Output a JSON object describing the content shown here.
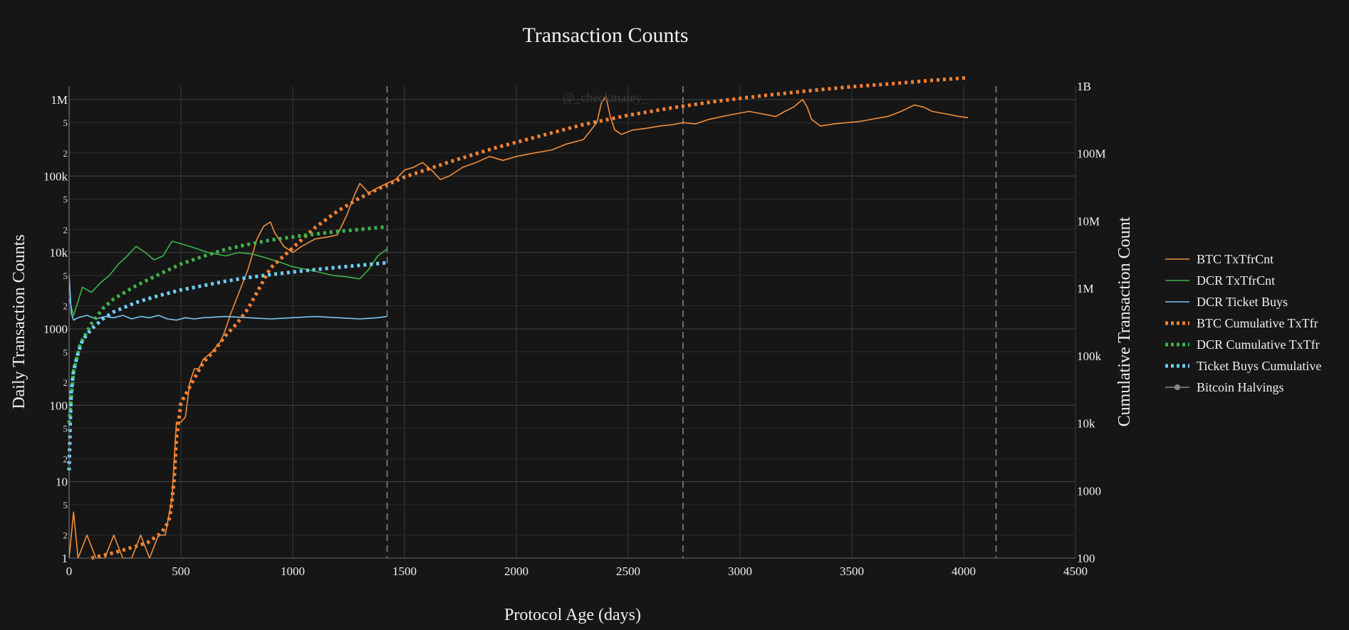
{
  "chart_data": {
    "type": "line",
    "title": "Transaction Counts",
    "watermark": "@_checkmatey_",
    "xlabel": "Protocol Age (days)",
    "ylabel_left": "Daily Transaction Counts",
    "ylabel_right": "Cumulative Transaction Count",
    "xlim": [
      0,
      4500
    ],
    "x_ticks": [
      0,
      500,
      1000,
      1500,
      2000,
      2500,
      3000,
      3500,
      4000,
      4500
    ],
    "x_tick_labels": [
      "0",
      "500",
      "1000",
      "1500",
      "2000",
      "2500",
      "3000",
      "3500",
      "4000",
      "4500"
    ],
    "y_left": {
      "scale": "log",
      "ylim": [
        1,
        1500000
      ],
      "major_ticks": [
        1,
        10,
        100,
        1000,
        10000,
        100000,
        1000000
      ],
      "major_labels": [
        "1",
        "10",
        "100",
        "1000",
        "10k",
        "100k",
        "1M"
      ],
      "minor_ticks": [
        2,
        5,
        20,
        50,
        200,
        500,
        2000,
        5000,
        20000,
        50000,
        200000,
        500000
      ],
      "minor_labels": [
        "2",
        "5",
        "2",
        "5",
        "2",
        "5",
        "2",
        "5",
        "2",
        "5",
        "2",
        "5"
      ]
    },
    "y_right": {
      "scale": "log",
      "ylim": [
        100,
        1000000000
      ],
      "ticks": [
        100,
        1000,
        10000,
        100000,
        1000000,
        10000000,
        100000000,
        1000000000
      ],
      "labels": [
        "100",
        "1000",
        "10k",
        "100k",
        "1M",
        "10M",
        "100M",
        "1B"
      ]
    },
    "halvings_x": [
      1422,
      2745,
      4145
    ],
    "legend_position": "right",
    "grid": true,
    "series": [
      {
        "name": "BTC TxTfrCnt",
        "axis": "left",
        "style": "solid",
        "color": "#f28e3c",
        "x": [
          0,
          20,
          40,
          80,
          120,
          160,
          200,
          240,
          280,
          320,
          360,
          400,
          430,
          460,
          480,
          500,
          520,
          540,
          560,
          580,
          600,
          640,
          680,
          700,
          720,
          760,
          800,
          840,
          870,
          900,
          920,
          960,
          1000,
          1040,
          1100,
          1160,
          1200,
          1240,
          1280,
          1300,
          1340,
          1380,
          1420,
          1460,
          1500,
          1540,
          1580,
          1620,
          1660,
          1700,
          1760,
          1820,
          1880,
          1940,
          2000,
          2080,
          2160,
          2220,
          2300,
          2360,
          2380,
          2400,
          2420,
          2440,
          2470,
          2520,
          2580,
          2640,
          2700,
          2745,
          2800,
          2860,
          2920,
          2980,
          3040,
          3100,
          3160,
          3200,
          3240,
          3280,
          3300,
          3320,
          3360,
          3420,
          3480,
          3540,
          3600,
          3660,
          3720,
          3780,
          3820,
          3860,
          3920,
          3980,
          4020
        ],
        "y": [
          1,
          4,
          1,
          2,
          1,
          1,
          2,
          1,
          1,
          2,
          1,
          2,
          2,
          6,
          60,
          60,
          70,
          200,
          300,
          300,
          400,
          500,
          700,
          1000,
          1500,
          3000,
          6000,
          15000,
          22000,
          25000,
          18000,
          12000,
          10000,
          12000,
          15000,
          16000,
          17000,
          30000,
          60000,
          80000,
          60000,
          70000,
          80000,
          90000,
          120000,
          130000,
          150000,
          120000,
          90000,
          100000,
          130000,
          150000,
          180000,
          160000,
          180000,
          200000,
          220000,
          260000,
          300000,
          500000,
          900000,
          1100000,
          600000,
          400000,
          350000,
          400000,
          420000,
          450000,
          470000,
          500000,
          480000,
          550000,
          600000,
          650000,
          700000,
          650000,
          600000,
          700000,
          800000,
          1000000,
          800000,
          550000,
          450000,
          480000,
          500000,
          520000,
          560000,
          600000,
          700000,
          850000,
          800000,
          700000,
          650000,
          600000,
          580000
        ]
      },
      {
        "name": "DCR TxTfrCnt",
        "axis": "left",
        "style": "solid",
        "color": "#3cb44b",
        "x": [
          0,
          20,
          60,
          100,
          140,
          180,
          220,
          260,
          300,
          340,
          380,
          420,
          460,
          500,
          540,
          580,
          620,
          660,
          700,
          760,
          820,
          880,
          940,
          1000,
          1060,
          1120,
          1180,
          1240,
          1300,
          1340,
          1380,
          1420
        ],
        "y": [
          2500,
          1500,
          3500,
          3000,
          4000,
          5000,
          7000,
          9000,
          12000,
          10000,
          8000,
          9000,
          14000,
          13000,
          12000,
          11000,
          10000,
          9500,
          9000,
          10000,
          9500,
          8500,
          7500,
          6500,
          6000,
          5500,
          5000,
          4800,
          4500,
          6000,
          9000,
          11000
        ]
      },
      {
        "name": "DCR Ticket Buys",
        "axis": "left",
        "style": "solid",
        "color": "#7ac8f4",
        "x": [
          0,
          10,
          20,
          40,
          80,
          120,
          160,
          200,
          240,
          280,
          320,
          360,
          400,
          440,
          480,
          520,
          560,
          600,
          700,
          800,
          900,
          1000,
          1100,
          1200,
          1300,
          1380,
          1420
        ],
        "y": [
          5000,
          1600,
          1300,
          1400,
          1500,
          1350,
          1450,
          1400,
          1500,
          1350,
          1450,
          1400,
          1500,
          1350,
          1300,
          1400,
          1350,
          1400,
          1450,
          1400,
          1350,
          1400,
          1450,
          1400,
          1350,
          1400,
          1450
        ]
      },
      {
        "name": "BTC Cumulative TxTfr",
        "axis": "right",
        "style": "dotted",
        "color": "#f58231",
        "x": [
          100,
          200,
          300,
          350,
          400,
          430,
          450,
          460,
          470,
          480,
          500,
          550,
          600,
          650,
          700,
          750,
          800,
          850,
          900,
          1000,
          1100,
          1200,
          1300,
          1400,
          1500,
          1700,
          1900,
          2100,
          2300,
          2500,
          2700,
          2900,
          3100,
          3300,
          3500,
          3700,
          3900,
          4000,
          4020
        ],
        "y": [
          100,
          120,
          150,
          170,
          220,
          280,
          400,
          700,
          1500,
          6000,
          20000,
          40000,
          80000,
          120000,
          200000,
          300000,
          500000,
          1000000,
          2000000,
          4000000,
          8000000,
          14000000,
          22000000,
          32000000,
          45000000,
          75000000,
          120000000,
          180000000,
          270000000,
          370000000,
          480000000,
          600000000,
          720000000,
          850000000,
          980000000,
          1100000000,
          1250000000,
          1320000000,
          1350000000
        ]
      },
      {
        "name": "DCR Cumulative TxTfr",
        "axis": "right",
        "style": "dotted",
        "color": "#3cb44b",
        "x": [
          0,
          20,
          50,
          100,
          150,
          200,
          300,
          400,
          500,
          600,
          700,
          800,
          900,
          1000,
          1100,
          1200,
          1300,
          1420
        ],
        "y": [
          10000,
          60000,
          150000,
          300000,
          500000,
          700000,
          1100000,
          1600000,
          2300000,
          3000000,
          3800000,
          4500000,
          5200000,
          5800000,
          6400000,
          7000000,
          7500000,
          8200000
        ]
      },
      {
        "name": "Ticket Buys Cumulative",
        "axis": "right",
        "style": "dotted",
        "color": "#6ecff6",
        "x": [
          0,
          5,
          10,
          20,
          40,
          60,
          100,
          150,
          200,
          300,
          400,
          500,
          600,
          700,
          800,
          900,
          1000,
          1100,
          1200,
          1300,
          1420
        ],
        "y": [
          2000,
          10000,
          30000,
          60000,
          110000,
          170000,
          250000,
          350000,
          450000,
          620000,
          780000,
          950000,
          1100000,
          1280000,
          1450000,
          1600000,
          1750000,
          1900000,
          2050000,
          2200000,
          2400000
        ]
      },
      {
        "name": "Bitcoin Halvings",
        "axis": "left",
        "style": "dashed-vertical",
        "color": "#888888"
      }
    ]
  }
}
